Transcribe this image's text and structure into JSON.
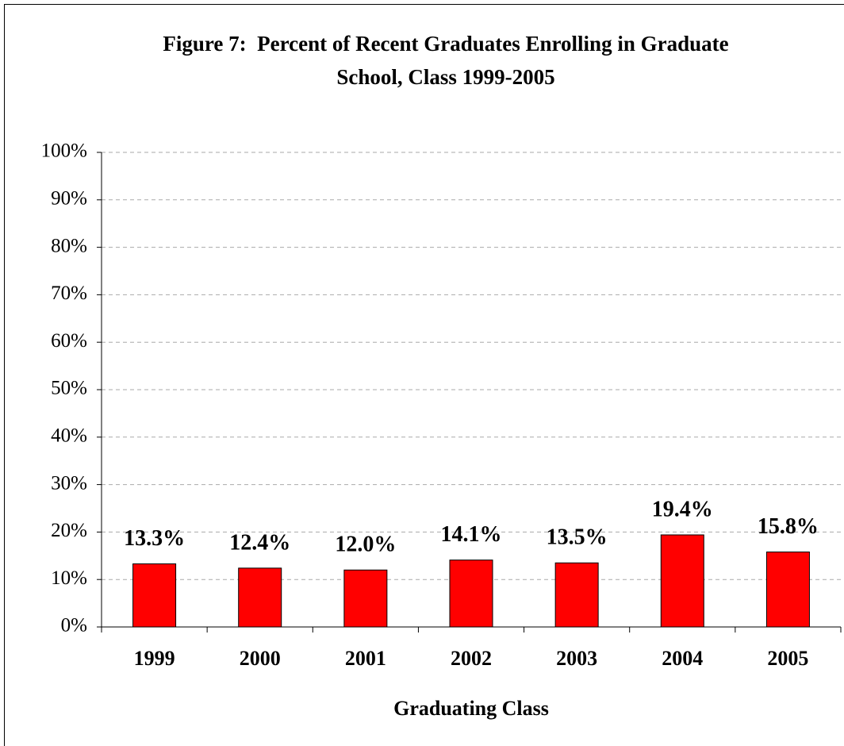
{
  "chart_data": {
    "type": "bar",
    "title": [
      "Figure 7:  Percent of Recent Graduates Enrolling in Graduate",
      "School, Class 1999-2005"
    ],
    "x_label": "Graduating Class",
    "categories": [
      "1999",
      "2000",
      "2001",
      "2002",
      "2003",
      "2004",
      "2005"
    ],
    "values": [
      13.3,
      12.4,
      12.0,
      14.1,
      13.5,
      19.4,
      15.8
    ],
    "value_labels": [
      "13.3%",
      "12.4%",
      "12.0%",
      "14.1%",
      "13.5%",
      "19.4%",
      "15.8%"
    ],
    "color": "#ff0000",
    "ylim": [
      0,
      100
    ],
    "yticks": [
      {
        "value": 0,
        "label": "0%"
      },
      {
        "value": 10,
        "label": "10%"
      },
      {
        "value": 20,
        "label": "20%"
      },
      {
        "value": 30,
        "label": "30%"
      },
      {
        "value": 40,
        "label": "40%"
      },
      {
        "value": 50,
        "label": "50%"
      },
      {
        "value": 60,
        "label": "60%"
      },
      {
        "value": 70,
        "label": "70%"
      },
      {
        "value": 80,
        "label": "80%"
      },
      {
        "value": 90,
        "label": "90%"
      },
      {
        "value": 100,
        "label": "100%"
      }
    ],
    "grid": true
  }
}
